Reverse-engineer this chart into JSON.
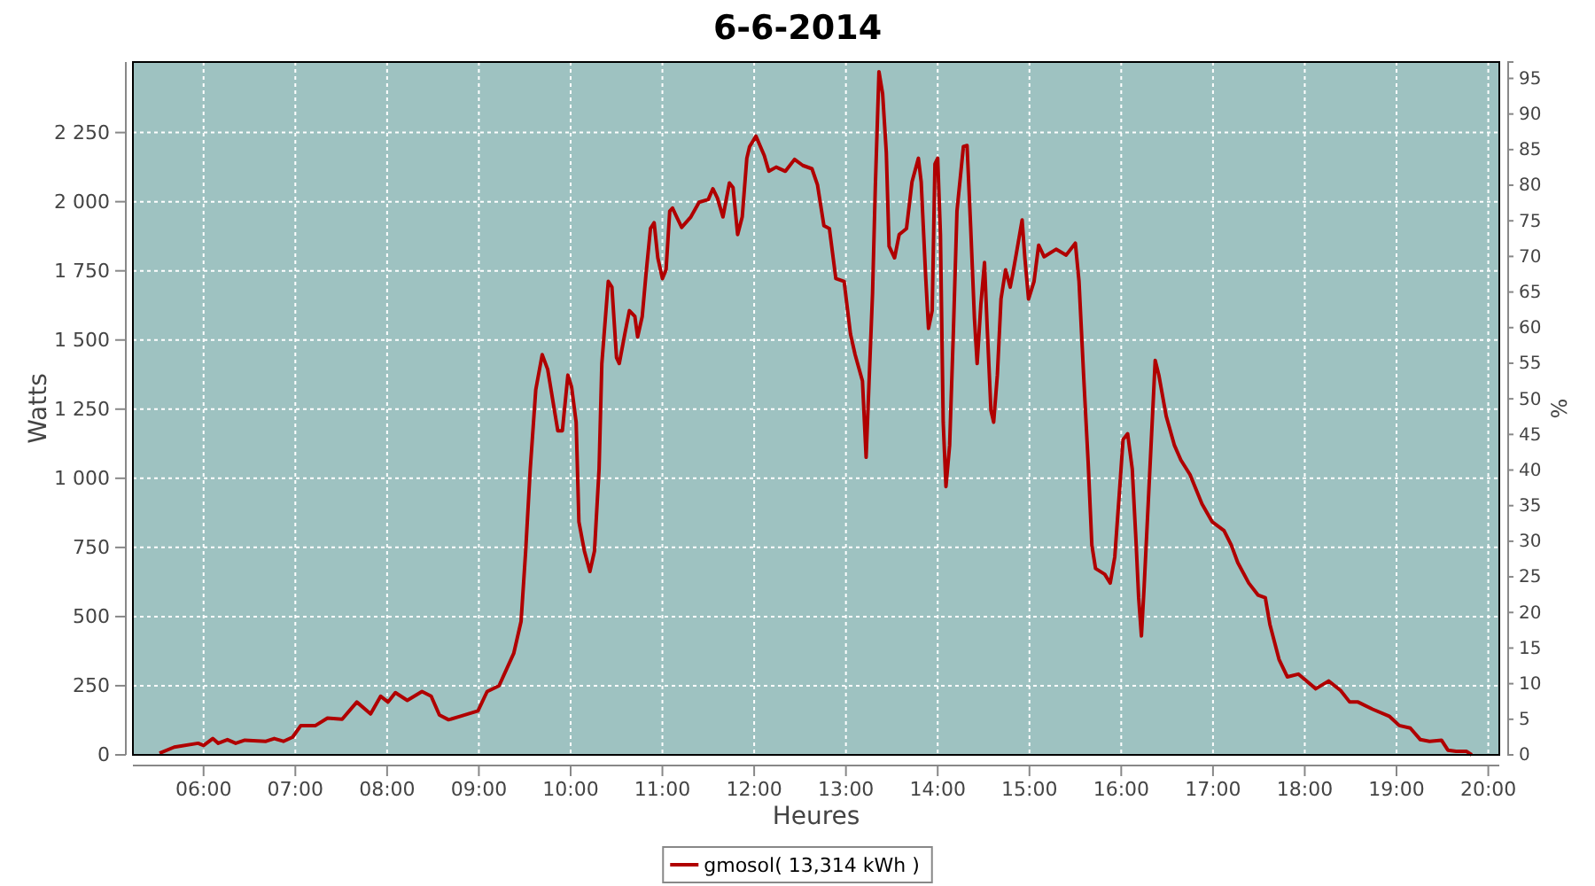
{
  "chart_data": {
    "type": "line",
    "title": "6-6-2014",
    "xlabel": "Heures",
    "ylabel": "Watts",
    "y2label": "%",
    "xlim": [
      5.23,
      20.12
    ],
    "xticks": [
      {
        "value": 6,
        "label": "06:00"
      },
      {
        "value": 7,
        "label": "07:00"
      },
      {
        "value": 8,
        "label": "08:00"
      },
      {
        "value": 9,
        "label": "09:00"
      },
      {
        "value": 10,
        "label": "10:00"
      },
      {
        "value": 11,
        "label": "11:00"
      },
      {
        "value": 12,
        "label": "12:00"
      },
      {
        "value": 13,
        "label": "13:00"
      },
      {
        "value": 14,
        "label": "14:00"
      },
      {
        "value": 15,
        "label": "15:00"
      },
      {
        "value": 16,
        "label": "16:00"
      },
      {
        "value": 17,
        "label": "17:00"
      },
      {
        "value": 18,
        "label": "18:00"
      },
      {
        "value": 19,
        "label": "19:00"
      },
      {
        "value": 20,
        "label": "20:00"
      }
    ],
    "ylim": [
      0,
      2505
    ],
    "yticks": [
      0,
      250,
      500,
      750,
      {
        "value": 1000,
        "label": "1 000"
      },
      {
        "value": 1250,
        "label": "1 250"
      },
      {
        "value": 1500,
        "label": "1 500"
      },
      {
        "value": 1750,
        "label": "1 750"
      },
      {
        "value": 2000,
        "label": "2 000"
      },
      {
        "value": 2250,
        "label": "2 250"
      }
    ],
    "y2lim": [
      0,
      97.3
    ],
    "y2ticks": [
      0,
      5,
      10,
      15,
      20,
      25,
      30,
      35,
      40,
      45,
      50,
      55,
      60,
      65,
      70,
      75,
      80,
      85,
      90,
      95
    ],
    "grid": true,
    "legend": "bottom",
    "marker": "none",
    "line_style": "solid",
    "series": [
      {
        "name": "gmosol( 13,314 kWh )",
        "color": "#b00000",
        "x": [
          5.52,
          5.68,
          5.94,
          6.0,
          6.1,
          6.16,
          6.26,
          6.35,
          6.45,
          6.68,
          6.77,
          6.87,
          6.97,
          7.06,
          7.22,
          7.35,
          7.51,
          7.67,
          7.82,
          7.93,
          8.01,
          8.09,
          8.22,
          8.38,
          8.48,
          8.57,
          8.67,
          8.8,
          8.99,
          9.09,
          9.22,
          9.38,
          9.46,
          9.51,
          9.56,
          9.62,
          9.69,
          9.75,
          9.86,
          9.91,
          9.97,
          10.01,
          10.06,
          10.09,
          10.15,
          10.21,
          10.26,
          10.31,
          10.34,
          10.41,
          10.45,
          10.5,
          10.53,
          10.59,
          10.64,
          10.7,
          10.73,
          10.78,
          10.82,
          10.87,
          10.91,
          10.95,
          11.0,
          11.04,
          11.08,
          11.11,
          11.21,
          11.31,
          11.4,
          11.5,
          11.55,
          11.6,
          11.66,
          11.73,
          11.77,
          11.82,
          11.87,
          11.92,
          11.95,
          12.02,
          12.11,
          12.16,
          12.24,
          12.34,
          12.44,
          12.53,
          12.63,
          12.69,
          12.76,
          12.82,
          12.89,
          12.98,
          13.05,
          13.1,
          13.18,
          13.22,
          13.25,
          13.29,
          13.32,
          13.36,
          13.4,
          13.44,
          13.47,
          13.53,
          13.58,
          13.66,
          13.72,
          13.79,
          13.82,
          13.87,
          13.9,
          13.94,
          13.97,
          14.0,
          14.03,
          14.06,
          14.09,
          14.13,
          14.17,
          14.21,
          14.28,
          14.32,
          14.36,
          14.4,
          14.43,
          14.47,
          14.51,
          14.54,
          14.58,
          14.61,
          14.65,
          14.69,
          14.74,
          14.79,
          14.82,
          14.86,
          14.92,
          14.95,
          14.99,
          15.05,
          15.1,
          15.16,
          15.29,
          15.4,
          15.5,
          15.54,
          15.59,
          15.64,
          15.68,
          15.72,
          15.82,
          15.88,
          15.93,
          15.98,
          16.02,
          16.07,
          16.12,
          16.16,
          16.19,
          16.22,
          16.25,
          16.3,
          16.35,
          16.37,
          16.41,
          16.49,
          16.58,
          16.65,
          16.75,
          16.88,
          16.99,
          17.12,
          17.2,
          17.27,
          17.39,
          17.49,
          17.57,
          17.62,
          17.72,
          17.81,
          17.93,
          18.12,
          18.26,
          18.39,
          18.49,
          18.58,
          18.74,
          18.92,
          19.03,
          19.15,
          19.26,
          19.36,
          19.49,
          19.56,
          19.65,
          19.76,
          19.82
        ],
        "values": [
          6,
          28,
          42,
          34,
          59,
          42,
          55,
          42,
          53,
          49,
          59,
          49,
          64,
          106,
          106,
          133,
          129,
          191,
          148,
          212,
          191,
          225,
          197,
          229,
          212,
          144,
          127,
          140,
          159,
          229,
          250,
          367,
          483,
          737,
          1034,
          1320,
          1447,
          1394,
          1172,
          1172,
          1373,
          1331,
          1203,
          843,
          737,
          663,
          737,
          1034,
          1415,
          1712,
          1691,
          1436,
          1415,
          1521,
          1606,
          1585,
          1511,
          1585,
          1733,
          1903,
          1924,
          1797,
          1722,
          1754,
          1966,
          1977,
          1907,
          1945,
          1998,
          2008,
          2047,
          2013,
          1945,
          2068,
          2051,
          1881,
          1945,
          2157,
          2199,
          2237,
          2167,
          2110,
          2125,
          2110,
          2153,
          2131,
          2119,
          2061,
          1913,
          1903,
          1722,
          1712,
          1521,
          1447,
          1352,
          1076,
          1331,
          1669,
          2051,
          2470,
          2390,
          2178,
          1839,
          1797,
          1881,
          1903,
          2072,
          2157,
          2072,
          1722,
          1542,
          1606,
          2136,
          2157,
          1881,
          1203,
          970,
          1119,
          1521,
          1966,
          2199,
          2203,
          1903,
          1580,
          1415,
          1627,
          1780,
          1542,
          1246,
          1203,
          1373,
          1648,
          1754,
          1691,
          1743,
          1818,
          1934,
          1797,
          1648,
          1712,
          1843,
          1801,
          1828,
          1807,
          1850,
          1712,
          1373,
          1055,
          758,
          674,
          653,
          621,
          716,
          949,
          1140,
          1161,
          1034,
          780,
          568,
          430,
          610,
          949,
          1288,
          1426,
          1373,
          1225,
          1119,
          1066,
          1013,
          907,
          843,
          811,
          758,
          695,
          621,
          578,
          568,
          472,
          345,
          282,
          292,
          239,
          267,
          233,
          191,
          191,
          165,
          140,
          106,
          97,
          55,
          49,
          53,
          17,
          13,
          13,
          0
        ]
      }
    ]
  }
}
